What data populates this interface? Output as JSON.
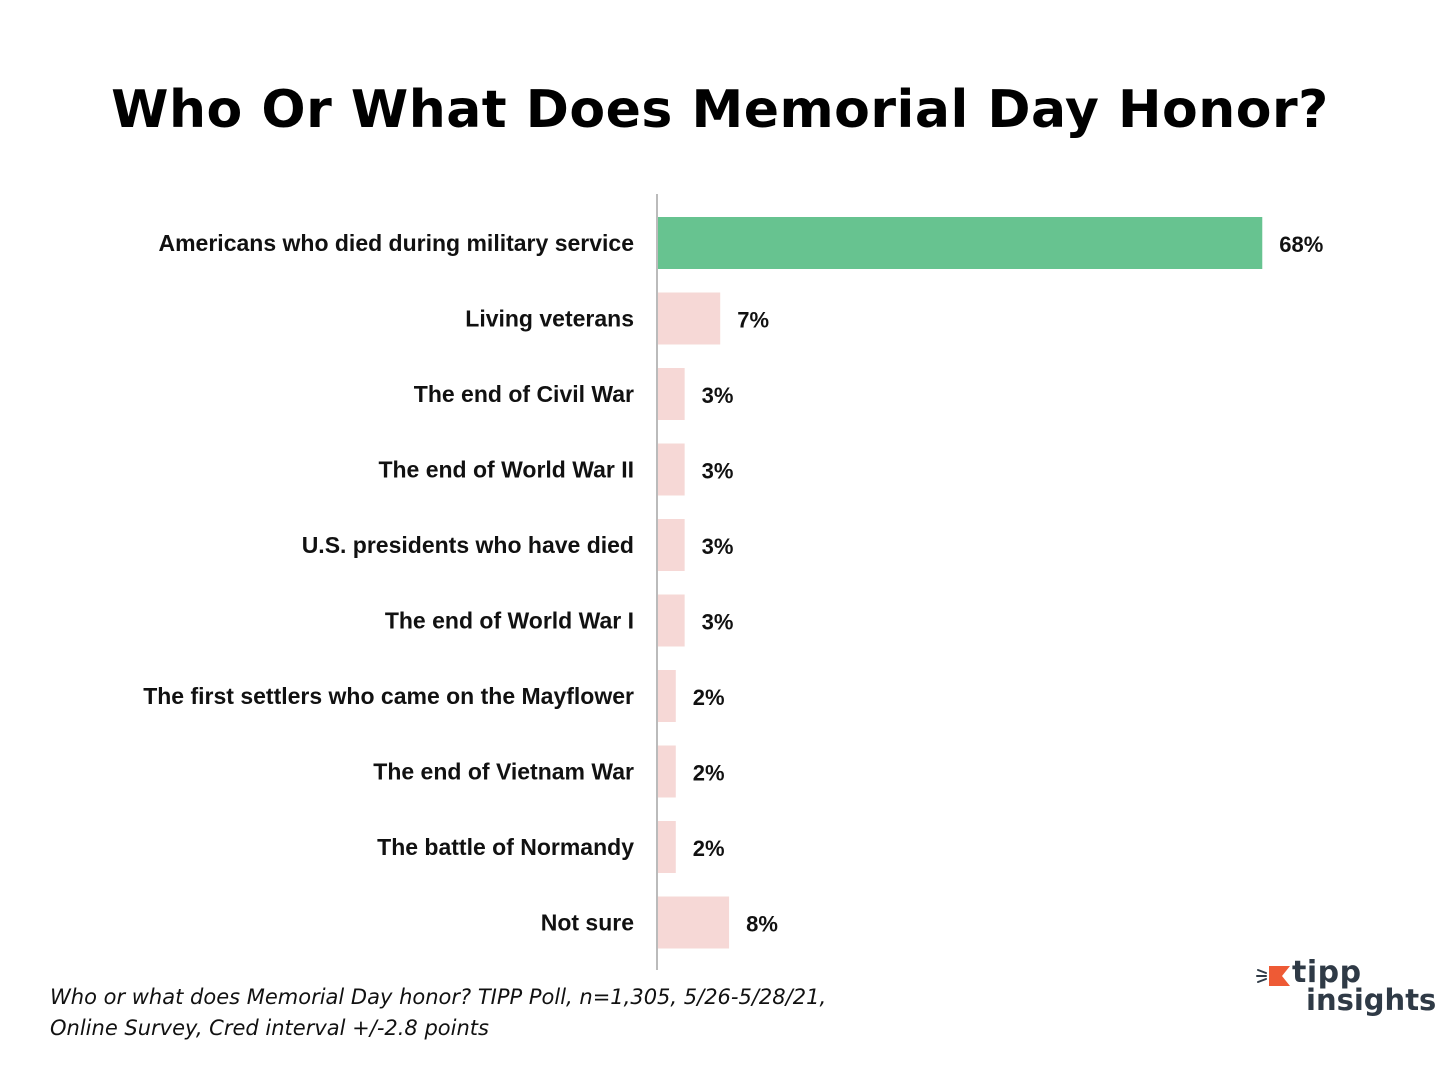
{
  "chart_data": {
    "type": "bar",
    "orientation": "horizontal",
    "title": "Who Or What Does Memorial Day Honor?",
    "categories": [
      "Americans who died during military service",
      "Living veterans",
      "The end of Civil War",
      "The end of World War II",
      "U.S. presidents who have died",
      "The end of World War I",
      "The first settlers who came on the Mayflower",
      "The end of Vietnam War",
      "The battle of Normandy",
      "Not sure"
    ],
    "values": [
      68,
      7,
      3,
      3,
      3,
      3,
      2,
      2,
      2,
      8
    ],
    "value_labels": [
      "68%",
      "7%",
      "3%",
      "3%",
      "3%",
      "3%",
      "2%",
      "2%",
      "2%",
      "8%"
    ],
    "unit": "%",
    "xlim": [
      0,
      88
    ],
    "grid": false,
    "legend": "none",
    "colors": {
      "highlight": "#67c390",
      "other": "#f6d8d6",
      "axis": "#bbbbbb"
    }
  },
  "footnote": {
    "line1": "Who or what does Memorial Day honor?  TIPP Poll, n=1,305, 5/26-5/28/21,",
    "line2": "Online Survey, Cred interval +/-2.8 points"
  },
  "logo": {
    "word1": "tipp",
    "word2": "insights",
    "accent_color": "#ee5a35",
    "text_color": "#2f3a46"
  }
}
